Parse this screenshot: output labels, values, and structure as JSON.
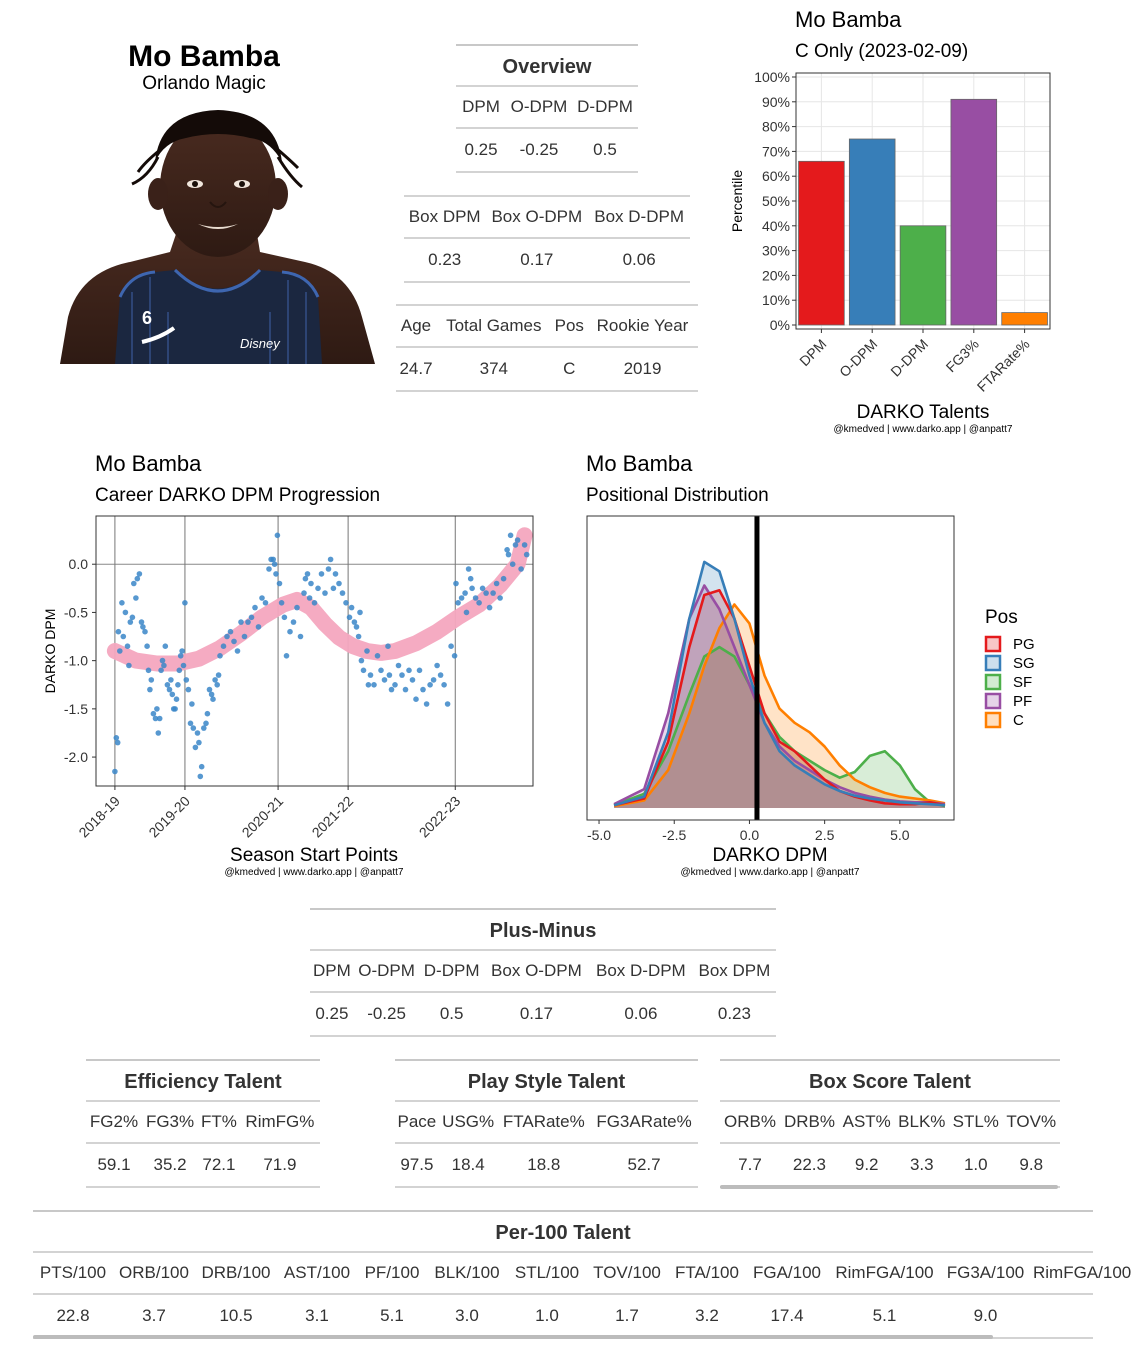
{
  "player": {
    "name": "Mo Bamba",
    "team": "Orlando Magic"
  },
  "overview": {
    "title": "Overview",
    "headers": [
      "DPM",
      "O-DPM",
      "D-DPM"
    ],
    "values": [
      "0.25",
      "-0.25",
      "0.5"
    ]
  },
  "box": {
    "headers": [
      "Box DPM",
      "Box O-DPM",
      "Box D-DPM"
    ],
    "values": [
      "0.23",
      "0.17",
      "0.06"
    ]
  },
  "bio": {
    "headers": [
      "Age",
      "Total Games",
      "Pos",
      "Rookie Year"
    ],
    "values": [
      "24.7",
      "374",
      "C",
      "2019"
    ]
  },
  "plus_minus": {
    "title": "Plus-Minus",
    "headers": [
      "DPM",
      "O-DPM",
      "D-DPM",
      "Box O-DPM",
      "Box D-DPM",
      "Box DPM"
    ],
    "values": [
      "0.25",
      "-0.25",
      "0.5",
      "0.17",
      "0.06",
      "0.23"
    ]
  },
  "efficiency": {
    "title": "Efficiency Talent",
    "headers": [
      "FG2%",
      "FG3%",
      "FT%",
      "RimFG%"
    ],
    "values": [
      "59.1",
      "35.2",
      "72.1",
      "71.9"
    ]
  },
  "playstyle": {
    "title": "Play Style Talent",
    "headers": [
      "Pace",
      "USG%",
      "FTARate%",
      "FG3ARate%"
    ],
    "values": [
      "97.5",
      "18.4",
      "18.8",
      "52.7"
    ]
  },
  "boxscore": {
    "title": "Box Score Talent",
    "headers": [
      "ORB%",
      "DRB%",
      "AST%",
      "BLK%",
      "STL%",
      "TOV%"
    ],
    "values": [
      "7.7",
      "22.3",
      "9.2",
      "3.3",
      "1.0",
      "9.8"
    ]
  },
  "per100": {
    "title": "Per-100 Talent",
    "headers": [
      "PTS/100",
      "ORB/100",
      "DRB/100",
      "AST/100",
      "PF/100",
      "BLK/100",
      "STL/100",
      "TOV/100",
      "FTA/100",
      "FGA/100",
      "RimFGA/100",
      "FG3A/100",
      "RimFGA/100"
    ],
    "values": [
      "22.8",
      "3.7",
      "10.5",
      "3.1",
      "5.1",
      "3.0",
      "1.0",
      "1.7",
      "3.2",
      "17.4",
      "5.1",
      "9.0",
      ""
    ]
  },
  "credit": "@kmedved | www.darko.app | @anpatt7",
  "chart_data": [
    {
      "type": "bar",
      "title": "Mo Bamba",
      "subtitle": "C Only (2023-02-09)",
      "xlabel": "DARKO Talents",
      "ylabel": "Percentile",
      "categories": [
        "DPM",
        "O-DPM",
        "D-DPM",
        "FG3%",
        "FTARate%"
      ],
      "values": [
        66,
        75,
        40,
        91,
        5
      ],
      "colors": [
        "#e41a1c",
        "#377eb8",
        "#4daf4a",
        "#984ea3",
        "#ff7f00"
      ],
      "ylim": [
        0,
        100
      ],
      "yticks": [
        "0%",
        "10%",
        "20%",
        "30%",
        "40%",
        "50%",
        "60%",
        "70%",
        "80%",
        "90%",
        "100%"
      ],
      "grid": true
    },
    {
      "type": "scatter",
      "title": "Mo Bamba",
      "subtitle": "Career DARKO DPM Progression",
      "xlabel": "Season Start Points",
      "ylabel": "DARKO DPM",
      "xticks": [
        "2018-19",
        "2019-20",
        "2020-21",
        "2021-22",
        "2022-23"
      ],
      "xtick_positions": [
        0,
        1,
        2.33,
        3.33,
        4.86
      ],
      "xlim": [
        -0.27,
        5.97
      ],
      "ylim": [
        -2.3,
        0.5
      ],
      "yticks": [
        "0.0",
        "-0.5",
        "-1.0",
        "-1.5",
        "-2.0"
      ],
      "ytick_values": [
        0,
        -0.5,
        -1,
        -1.5,
        -2
      ],
      "point_color": "#3a86c8",
      "smooth_color": "#f4a6bf",
      "smooth": [
        [
          0,
          -0.9
        ],
        [
          0.3,
          -1.0
        ],
        [
          0.6,
          -1.03
        ],
        [
          0.9,
          -1.03
        ],
        [
          1.2,
          -0.98
        ],
        [
          1.5,
          -0.87
        ],
        [
          1.8,
          -0.72
        ],
        [
          2.1,
          -0.55
        ],
        [
          2.4,
          -0.42
        ],
        [
          2.6,
          -0.37
        ],
        [
          2.8,
          -0.45
        ],
        [
          3.0,
          -0.62
        ],
        [
          3.2,
          -0.76
        ],
        [
          3.4,
          -0.85
        ],
        [
          3.6,
          -0.9
        ],
        [
          3.8,
          -0.92
        ],
        [
          4.0,
          -0.9
        ],
        [
          4.3,
          -0.82
        ],
        [
          4.6,
          -0.7
        ],
        [
          4.9,
          -0.55
        ],
        [
          5.2,
          -0.42
        ],
        [
          5.5,
          -0.22
        ],
        [
          5.75,
          0.0
        ],
        [
          5.85,
          0.3
        ]
      ],
      "points": [
        [
          0,
          -2.15
        ],
        [
          0.02,
          -1.8
        ],
        [
          0.04,
          -1.85
        ],
        [
          0.05,
          -0.7
        ],
        [
          0.07,
          -0.9
        ],
        [
          0.1,
          -0.4
        ],
        [
          0.12,
          -0.75
        ],
        [
          0.15,
          -0.5
        ],
        [
          0.18,
          -0.85
        ],
        [
          0.2,
          -1.05
        ],
        [
          0.22,
          -0.6
        ],
        [
          0.25,
          -0.55
        ],
        [
          0.27,
          -0.2
        ],
        [
          0.3,
          -0.35
        ],
        [
          0.32,
          -0.15
        ],
        [
          0.35,
          -0.1
        ],
        [
          0.38,
          -0.6
        ],
        [
          0.4,
          -0.65
        ],
        [
          0.43,
          -0.7
        ],
        [
          0.46,
          -0.85
        ],
        [
          0.48,
          -1.1
        ],
        [
          0.5,
          -1.3
        ],
        [
          0.52,
          -1.2
        ],
        [
          0.55,
          -1.55
        ],
        [
          0.58,
          -1.6
        ],
        [
          0.6,
          -1.5
        ],
        [
          0.62,
          -1.75
        ],
        [
          0.64,
          -1.6
        ],
        [
          0.66,
          -1.1
        ],
        [
          0.68,
          -1.0
        ],
        [
          0.7,
          -1.05
        ],
        [
          0.72,
          -0.85
        ],
        [
          0.75,
          -1.25
        ],
        [
          0.78,
          -1.3
        ],
        [
          0.8,
          -1.2
        ],
        [
          0.82,
          -1.35
        ],
        [
          0.84,
          -1.5
        ],
        [
          0.86,
          -1.5
        ],
        [
          0.88,
          -1.4
        ],
        [
          0.9,
          -1.25
        ],
        [
          0.92,
          -1.1
        ],
        [
          0.94,
          -0.95
        ],
        [
          0.96,
          -0.9
        ],
        [
          0.98,
          -1.05
        ],
        [
          1.0,
          -0.4
        ],
        [
          1.02,
          -1.2
        ],
        [
          1.05,
          -1.3
        ],
        [
          1.08,
          -1.65
        ],
        [
          1.1,
          -1.45
        ],
        [
          1.12,
          -1.7
        ],
        [
          1.15,
          -1.9
        ],
        [
          1.18,
          -1.75
        ],
        [
          1.2,
          -1.85
        ],
        [
          1.22,
          -2.2
        ],
        [
          1.24,
          -2.1
        ],
        [
          1.27,
          -1.7
        ],
        [
          1.3,
          -1.65
        ],
        [
          1.32,
          -1.55
        ],
        [
          1.35,
          -1.3
        ],
        [
          1.38,
          -1.35
        ],
        [
          1.4,
          -1.4
        ],
        [
          1.43,
          -1.2
        ],
        [
          1.46,
          -1.25
        ],
        [
          1.48,
          -1.15
        ],
        [
          1.5,
          -0.95
        ],
        [
          1.55,
          -0.85
        ],
        [
          1.6,
          -0.75
        ],
        [
          1.65,
          -0.7
        ],
        [
          1.7,
          -0.8
        ],
        [
          1.75,
          -0.9
        ],
        [
          1.8,
          -0.6
        ],
        [
          1.85,
          -0.75
        ],
        [
          1.9,
          -0.6
        ],
        [
          1.95,
          -0.55
        ],
        [
          2.0,
          -0.45
        ],
        [
          2.05,
          -0.65
        ],
        [
          2.1,
          -0.35
        ],
        [
          2.15,
          -0.4
        ],
        [
          2.2,
          -0.05
        ],
        [
          2.23,
          0.05
        ],
        [
          2.26,
          0.05
        ],
        [
          2.28,
          0.0
        ],
        [
          2.3,
          -0.1
        ],
        [
          2.32,
          0.3
        ],
        [
          2.35,
          -0.2
        ],
        [
          2.38,
          -0.4
        ],
        [
          2.42,
          -0.55
        ],
        [
          2.45,
          -0.95
        ],
        [
          2.5,
          -0.7
        ],
        [
          2.55,
          -0.6
        ],
        [
          2.6,
          -0.45
        ],
        [
          2.65,
          -0.75
        ],
        [
          2.7,
          -0.3
        ],
        [
          2.72,
          -0.15
        ],
        [
          2.75,
          -0.1
        ],
        [
          2.78,
          -0.35
        ],
        [
          2.8,
          -0.2
        ],
        [
          2.85,
          -0.4
        ],
        [
          2.9,
          -0.25
        ],
        [
          2.95,
          -0.1
        ],
        [
          3.0,
          -0.3
        ],
        [
          3.05,
          -0.05
        ],
        [
          3.08,
          0.05
        ],
        [
          3.12,
          -0.25
        ],
        [
          3.15,
          -0.1
        ],
        [
          3.2,
          -0.2
        ],
        [
          3.25,
          -0.3
        ],
        [
          3.3,
          -0.4
        ],
        [
          3.35,
          -0.55
        ],
        [
          3.38,
          -0.45
        ],
        [
          3.42,
          -0.6
        ],
        [
          3.45,
          -0.65
        ],
        [
          3.48,
          -0.75
        ],
        [
          3.5,
          -0.5
        ],
        [
          3.52,
          -1.0
        ],
        [
          3.55,
          -1.1
        ],
        [
          3.6,
          -0.9
        ],
        [
          3.62,
          -1.25
        ],
        [
          3.65,
          -1.15
        ],
        [
          3.7,
          -1.25
        ],
        [
          3.75,
          -0.95
        ],
        [
          3.8,
          -1.1
        ],
        [
          3.85,
          -1.2
        ],
        [
          3.9,
          -0.85
        ],
        [
          3.92,
          -1.15
        ],
        [
          3.95,
          -1.3
        ],
        [
          4.0,
          -1.25
        ],
        [
          4.05,
          -1.05
        ],
        [
          4.1,
          -1.15
        ],
        [
          4.15,
          -1.3
        ],
        [
          4.2,
          -1.1
        ],
        [
          4.25,
          -1.2
        ],
        [
          4.3,
          -1.4
        ],
        [
          4.35,
          -1.1
        ],
        [
          4.4,
          -1.3
        ],
        [
          4.45,
          -1.45
        ],
        [
          4.5,
          -1.25
        ],
        [
          4.55,
          -1.2
        ],
        [
          4.6,
          -1.05
        ],
        [
          4.65,
          -1.15
        ],
        [
          4.7,
          -1.25
        ],
        [
          4.75,
          -1.45
        ],
        [
          4.8,
          -0.85
        ],
        [
          4.85,
          -0.95
        ],
        [
          4.87,
          -0.2
        ],
        [
          4.9,
          -0.4
        ],
        [
          4.95,
          -0.35
        ],
        [
          5.0,
          -0.3
        ],
        [
          5.02,
          -0.5
        ],
        [
          5.05,
          -0.05
        ],
        [
          5.08,
          -0.15
        ],
        [
          5.1,
          -0.25
        ],
        [
          5.15,
          -0.35
        ],
        [
          5.2,
          -0.4
        ],
        [
          5.25,
          -0.25
        ],
        [
          5.3,
          -0.3
        ],
        [
          5.35,
          -0.45
        ],
        [
          5.4,
          -0.3
        ],
        [
          5.45,
          -0.2
        ],
        [
          5.5,
          -0.35
        ],
        [
          5.55,
          -0.15
        ],
        [
          5.6,
          0.15
        ],
        [
          5.62,
          0.1
        ],
        [
          5.65,
          0.3
        ],
        [
          5.68,
          0.0
        ],
        [
          5.72,
          0.2
        ],
        [
          5.75,
          0.25
        ],
        [
          5.8,
          -0.05
        ],
        [
          5.85,
          0.2
        ],
        [
          5.88,
          0.1
        ]
      ]
    },
    {
      "type": "area",
      "title": "Mo Bamba",
      "subtitle": "Positional Distribution",
      "xlabel": "DARKO DPM",
      "legend_title": "Pos",
      "legend_position": "right",
      "xticks": [
        "-5.0",
        "-2.5",
        "0.0",
        "2.5",
        "5.0"
      ],
      "xtick_values": [
        -5,
        -2.5,
        0,
        2.5,
        5
      ],
      "xlim": [
        -5.4,
        6.8
      ],
      "ylim": [
        0,
        0.3
      ],
      "player_value": 0.25,
      "series": [
        {
          "name": "PG",
          "color": "#e41a1c",
          "x": [
            -4.5,
            -3.5,
            -2.7,
            -2.0,
            -1.5,
            -1.0,
            -0.5,
            0.0,
            0.5,
            1.0,
            1.5,
            2.0,
            2.5,
            3.0,
            3.5,
            4.0,
            4.5,
            5.0,
            5.5,
            6.0,
            6.5
          ],
          "y": [
            0.003,
            0.01,
            0.07,
            0.17,
            0.225,
            0.23,
            0.2,
            0.15,
            0.1,
            0.07,
            0.06,
            0.045,
            0.03,
            0.018,
            0.012,
            0.008,
            0.005,
            0.004,
            0.004,
            0.006,
            0.003
          ]
        },
        {
          "name": "SG",
          "color": "#377eb8",
          "x": [
            -4.5,
            -3.5,
            -2.7,
            -2.0,
            -1.5,
            -1.0,
            -0.5,
            0.0,
            0.5,
            1.0,
            1.5,
            2.0,
            2.5,
            3.0,
            3.5,
            4.0,
            4.5,
            5.0,
            5.5,
            6.0,
            6.5
          ],
          "y": [
            0.003,
            0.012,
            0.08,
            0.2,
            0.26,
            0.25,
            0.2,
            0.14,
            0.09,
            0.06,
            0.045,
            0.035,
            0.025,
            0.018,
            0.013,
            0.01,
            0.008,
            0.006,
            0.005,
            0.004,
            0.003
          ]
        },
        {
          "name": "SF",
          "color": "#4daf4a",
          "x": [
            -4.5,
            -3.5,
            -2.7,
            -2.0,
            -1.5,
            -1.0,
            -0.5,
            0.0,
            0.5,
            1.0,
            1.5,
            2.0,
            2.5,
            3.0,
            3.5,
            4.0,
            4.5,
            5.0,
            5.5,
            6.0,
            6.5
          ],
          "y": [
            0.003,
            0.015,
            0.06,
            0.12,
            0.16,
            0.17,
            0.16,
            0.13,
            0.1,
            0.075,
            0.06,
            0.05,
            0.04,
            0.032,
            0.038,
            0.055,
            0.06,
            0.045,
            0.02,
            0.006,
            0.002
          ]
        },
        {
          "name": "PF",
          "color": "#984ea3",
          "x": [
            -4.5,
            -3.5,
            -2.7,
            -2.0,
            -1.5,
            -1.0,
            -0.5,
            0.0,
            0.5,
            1.0,
            1.5,
            2.0,
            2.5,
            3.0,
            3.5,
            4.0,
            4.5,
            5.0,
            5.5,
            6.0,
            6.5
          ],
          "y": [
            0.004,
            0.02,
            0.1,
            0.2,
            0.235,
            0.21,
            0.17,
            0.13,
            0.09,
            0.065,
            0.05,
            0.04,
            0.03,
            0.022,
            0.016,
            0.012,
            0.009,
            0.007,
            0.006,
            0.006,
            0.004
          ]
        },
        {
          "name": "C",
          "color": "#ff7f00",
          "x": [
            -4.5,
            -3.5,
            -2.7,
            -2.0,
            -1.5,
            -1.0,
            -0.5,
            0.0,
            0.5,
            1.0,
            1.5,
            2.0,
            2.5,
            3.0,
            3.5,
            4.0,
            4.5,
            5.0,
            5.5,
            6.0,
            6.5
          ],
          "y": [
            0.002,
            0.008,
            0.04,
            0.1,
            0.15,
            0.19,
            0.215,
            0.195,
            0.14,
            0.105,
            0.09,
            0.08,
            0.065,
            0.045,
            0.03,
            0.022,
            0.016,
            0.012,
            0.01,
            0.008,
            0.005
          ]
        }
      ]
    }
  ]
}
